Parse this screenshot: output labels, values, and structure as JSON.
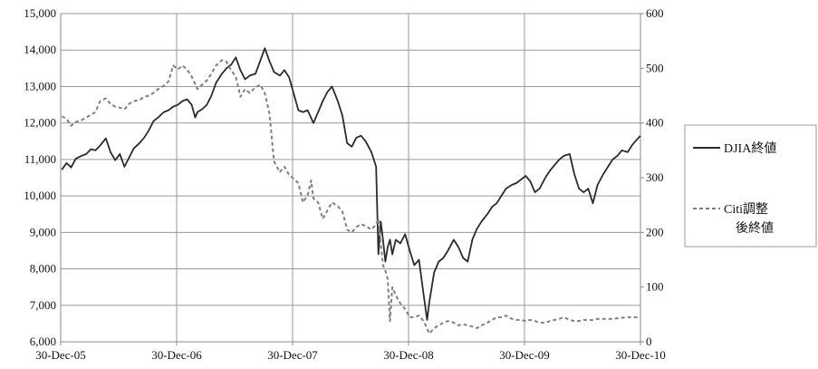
{
  "chart_data": {
    "type": "line",
    "title": "",
    "xlabel": "",
    "ylabel": "",
    "y2label": "",
    "grid": true,
    "legend_position": "right",
    "x_ticks": [
      "30-Dec-05",
      "30-Dec-06",
      "30-Dec-07",
      "30-Dec-08",
      "30-Dec-09",
      "30-Dec-10"
    ],
    "x_range": [
      2005.99,
      2010.99
    ],
    "y_left": {
      "range": [
        6000,
        15000
      ],
      "ticks": [
        "6,000",
        "7,000",
        "8,000",
        "9,000",
        "10,000",
        "11,000",
        "12,000",
        "13,000",
        "14,000",
        "15,000"
      ],
      "tick_values": [
        6000,
        7000,
        8000,
        9000,
        10000,
        11000,
        12000,
        13000,
        14000,
        15000
      ]
    },
    "y_right": {
      "range": [
        0,
        600
      ],
      "ticks": [
        "0",
        "100",
        "200",
        "300",
        "400",
        "500",
        "600"
      ],
      "tick_values": [
        0,
        100,
        200,
        300,
        400,
        500,
        600
      ]
    },
    "legend": [
      {
        "label": "DJIA終値",
        "style": "solid"
      },
      {
        "label": "Citi調整後終値",
        "style": "dashed"
      }
    ],
    "series": [
      {
        "name": "DJIA終値",
        "axis": "left",
        "color": "#2b2b2b",
        "style": "solid",
        "x": [
          2006.0,
          2006.04,
          2006.08,
          2006.12,
          2006.17,
          2006.21,
          2006.25,
          2006.29,
          2006.33,
          2006.38,
          2006.42,
          2006.46,
          2006.5,
          2006.54,
          2006.58,
          2006.62,
          2006.67,
          2006.71,
          2006.75,
          2006.79,
          2006.83,
          2006.88,
          2006.92,
          2006.96,
          2007.0,
          2007.04,
          2007.08,
          2007.12,
          2007.15,
          2007.17,
          2007.21,
          2007.25,
          2007.29,
          2007.33,
          2007.38,
          2007.42,
          2007.46,
          2007.5,
          2007.54,
          2007.58,
          2007.62,
          2007.67,
          2007.71,
          2007.75,
          2007.79,
          2007.83,
          2007.88,
          2007.92,
          2007.96,
          2008.0,
          2008.04,
          2008.08,
          2008.12,
          2008.17,
          2008.21,
          2008.25,
          2008.29,
          2008.33,
          2008.38,
          2008.42,
          2008.46,
          2008.5,
          2008.54,
          2008.58,
          2008.62,
          2008.67,
          2008.71,
          2008.73,
          2008.75,
          2008.77,
          2008.79,
          2008.81,
          2008.83,
          2008.85,
          2008.88,
          2008.92,
          2008.96,
          2009.0,
          2009.04,
          2009.08,
          2009.12,
          2009.15,
          2009.17,
          2009.19,
          2009.21,
          2009.25,
          2009.29,
          2009.33,
          2009.38,
          2009.42,
          2009.46,
          2009.5,
          2009.54,
          2009.58,
          2009.62,
          2009.67,
          2009.71,
          2009.75,
          2009.79,
          2009.83,
          2009.88,
          2009.92,
          2009.96,
          2010.0,
          2010.04,
          2010.08,
          2010.12,
          2010.17,
          2010.21,
          2010.25,
          2010.29,
          2010.33,
          2010.38,
          2010.42,
          2010.46,
          2010.5,
          2010.54,
          2010.58,
          2010.62,
          2010.67,
          2010.71,
          2010.75,
          2010.79,
          2010.83,
          2010.88,
          2010.92,
          2010.96,
          2010.99
        ],
        "values": [
          10720,
          10900,
          10780,
          11020,
          11100,
          11150,
          11280,
          11250,
          11380,
          11580,
          11200,
          10980,
          11150,
          10800,
          11050,
          11300,
          11450,
          11600,
          11800,
          12050,
          12150,
          12300,
          12350,
          12450,
          12500,
          12600,
          12650,
          12500,
          12150,
          12300,
          12380,
          12500,
          12750,
          13100,
          13350,
          13500,
          13600,
          13800,
          13450,
          13200,
          13300,
          13350,
          13700,
          14050,
          13700,
          13400,
          13300,
          13450,
          13250,
          12800,
          12350,
          12300,
          12350,
          12000,
          12300,
          12600,
          12850,
          13000,
          12600,
          12200,
          11450,
          11350,
          11600,
          11650,
          11500,
          11200,
          10800,
          8400,
          9300,
          8800,
          8200,
          8600,
          8800,
          8400,
          8800,
          8700,
          8950,
          8500,
          8100,
          8250,
          7300,
          6600,
          7100,
          7500,
          7900,
          8200,
          8300,
          8500,
          8800,
          8600,
          8300,
          8200,
          8800,
          9100,
          9300,
          9500,
          9700,
          9800,
          10000,
          10200,
          10300,
          10350,
          10450,
          10550,
          10400,
          10100,
          10200,
          10500,
          10700,
          10850,
          11000,
          11100,
          11150,
          10600,
          10200,
          10100,
          10200,
          9800,
          10300,
          10600,
          10800,
          11000,
          11100,
          11250,
          11200,
          11400,
          11550,
          11650
        ]
      },
      {
        "name": "Citi調整後終値",
        "axis": "right",
        "color": "#808080",
        "style": "dashed",
        "x": [
          2006.0,
          2006.04,
          2006.08,
          2006.12,
          2006.17,
          2006.21,
          2006.25,
          2006.29,
          2006.33,
          2006.38,
          2006.42,
          2006.46,
          2006.5,
          2006.54,
          2006.58,
          2006.62,
          2006.67,
          2006.71,
          2006.75,
          2006.79,
          2006.83,
          2006.88,
          2006.92,
          2006.96,
          2007.0,
          2007.04,
          2007.08,
          2007.12,
          2007.17,
          2007.21,
          2007.25,
          2007.29,
          2007.33,
          2007.38,
          2007.42,
          2007.46,
          2007.5,
          2007.54,
          2007.58,
          2007.62,
          2007.67,
          2007.71,
          2007.75,
          2007.79,
          2007.83,
          2007.88,
          2007.92,
          2007.96,
          2008.0,
          2008.04,
          2008.08,
          2008.12,
          2008.15,
          2008.17,
          2008.21,
          2008.25,
          2008.29,
          2008.33,
          2008.38,
          2008.42,
          2008.46,
          2008.5,
          2008.54,
          2008.58,
          2008.62,
          2008.67,
          2008.71,
          2008.73,
          2008.75,
          2008.77,
          2008.79,
          2008.81,
          2008.83,
          2008.85,
          2008.88,
          2008.92,
          2008.96,
          2009.0,
          2009.04,
          2009.08,
          2009.12,
          2009.17,
          2009.21,
          2009.25,
          2009.29,
          2009.33,
          2009.38,
          2009.42,
          2009.46,
          2009.5,
          2009.54,
          2009.58,
          2009.62,
          2009.67,
          2009.71,
          2009.75,
          2009.79,
          2009.83,
          2009.88,
          2009.92,
          2009.96,
          2010.0,
          2010.04,
          2010.08,
          2010.12,
          2010.17,
          2010.21,
          2010.25,
          2010.29,
          2010.33,
          2010.38,
          2010.42,
          2010.46,
          2010.5,
          2010.54,
          2010.58,
          2010.62,
          2010.67,
          2010.71,
          2010.75,
          2010.79,
          2010.83,
          2010.88,
          2010.92,
          2010.96,
          2010.99
        ],
        "values": [
          412,
          408,
          395,
          402,
          405,
          410,
          415,
          420,
          440,
          445,
          435,
          430,
          428,
          425,
          435,
          440,
          442,
          448,
          450,
          455,
          462,
          468,
          476,
          505,
          498,
          505,
          498,
          485,
          462,
          470,
          478,
          490,
          505,
          515,
          512,
          496,
          485,
          448,
          462,
          455,
          465,
          470,
          455,
          418,
          330,
          310,
          320,
          305,
          298,
          290,
          255,
          268,
          295,
          262,
          255,
          225,
          240,
          255,
          248,
          238,
          205,
          200,
          210,
          215,
          212,
          205,
          215,
          225,
          180,
          140,
          130,
          115,
          38,
          100,
          85,
          70,
          60,
          45,
          45,
          48,
          38,
          15,
          25,
          30,
          35,
          38,
          35,
          30,
          32,
          30,
          28,
          25,
          30,
          35,
          40,
          45,
          45,
          48,
          42,
          40,
          40,
          38,
          40,
          38,
          35,
          35,
          38,
          40,
          42,
          45,
          40,
          38,
          38,
          40,
          40,
          40,
          42,
          42,
          42,
          42,
          43,
          44,
          45,
          45,
          45,
          46
        ]
      }
    ]
  }
}
